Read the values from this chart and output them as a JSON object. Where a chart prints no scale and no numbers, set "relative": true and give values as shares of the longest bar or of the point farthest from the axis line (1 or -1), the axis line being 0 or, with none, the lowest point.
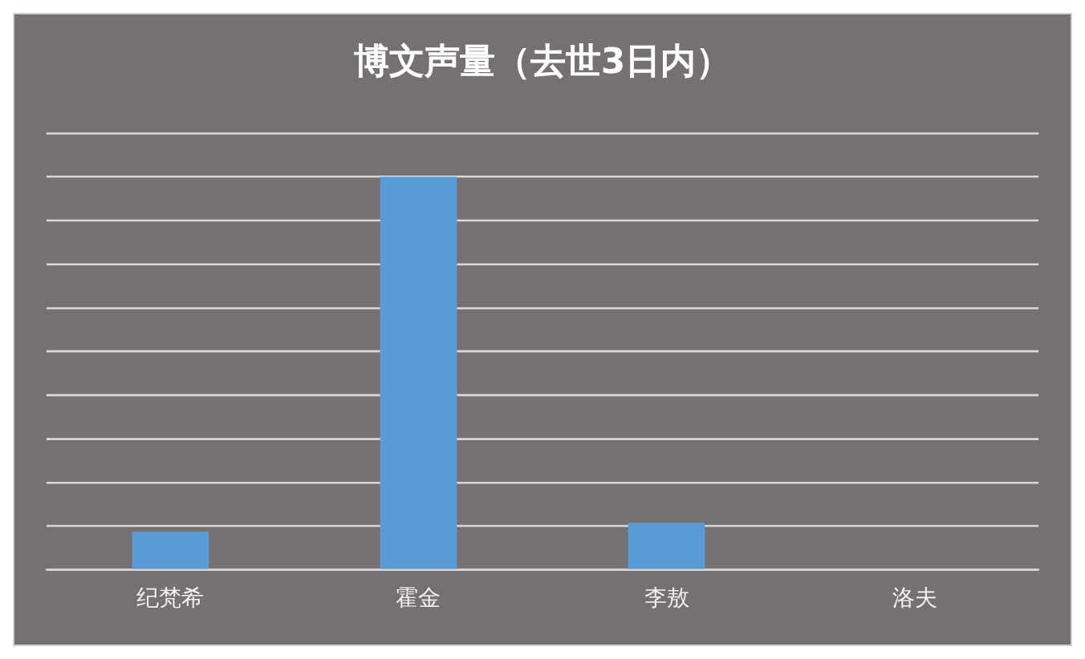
{
  "chart_data": {
    "type": "bar",
    "title": "博文声量（去世3日内）",
    "categories": [
      "纪梵希",
      "霍金",
      "李敖",
      "洛夫"
    ],
    "values": [
      0.097,
      1,
      0.12,
      0
    ],
    "color": "#5b9bd5",
    "relative": true,
    "grid": "y",
    "legend": false
  }
}
